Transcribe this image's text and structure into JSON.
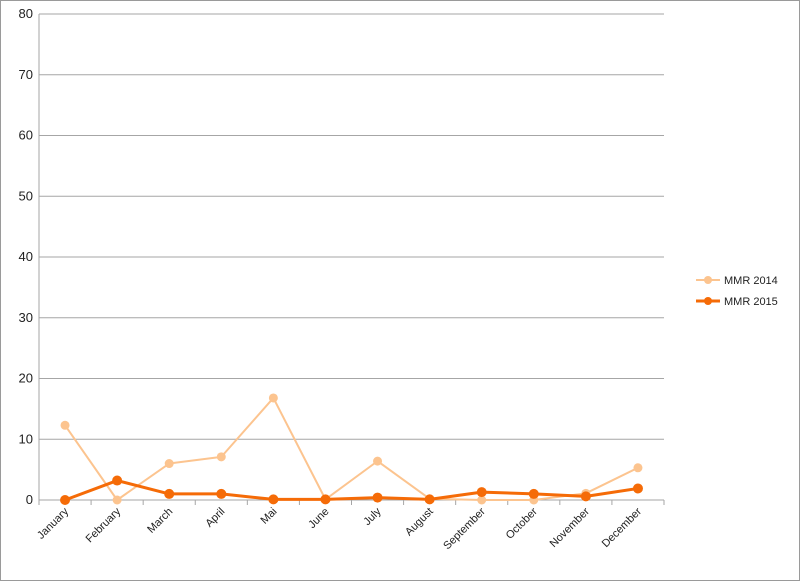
{
  "chart_data": {
    "type": "line",
    "categories": [
      "January",
      "February",
      "March",
      "April",
      "Mai",
      "June",
      "July",
      "August",
      "September",
      "October",
      "November",
      "December"
    ],
    "series": [
      {
        "name": "MMR 2014",
        "color": "#fcc48f",
        "values": [
          12.3,
          0,
          6.0,
          7.1,
          16.8,
          0.1,
          6.4,
          0.2,
          0,
          0,
          1.1,
          5.3
        ]
      },
      {
        "name": "MMR 2015",
        "color": "#f56b07",
        "values": [
          0,
          3.2,
          1.0,
          1.0,
          0.1,
          0.1,
          0.4,
          0.1,
          1.3,
          1.0,
          0.6,
          1.9
        ]
      }
    ],
    "ylim": [
      0,
      80
    ],
    "yticks": [
      0,
      10,
      20,
      30,
      40,
      50,
      60,
      70,
      80
    ],
    "grid": true,
    "legend": "right",
    "title": "",
    "xlabel": "",
    "ylabel": ""
  }
}
